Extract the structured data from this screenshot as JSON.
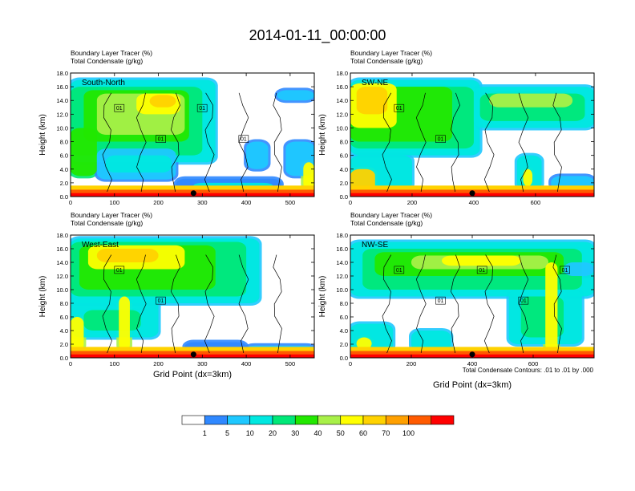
{
  "title": "2014-01-11_00:00:00",
  "shared": {
    "y_axis_label": "Height (km)",
    "x_axis_label": "Grid Point (dx=3km)",
    "contour_note": "Total Condensate Contours: .01 to .01 by .000"
  },
  "colors": {
    "frame": "#000000",
    "levels": [
      "#ffffff",
      "#2f88ff",
      "#1ec8ff",
      "#00e8e0",
      "#00e878",
      "#22e800",
      "#a8f048",
      "#ffff00",
      "#ffd200",
      "#ffa000",
      "#ff5a00",
      "#ff0000"
    ]
  },
  "colorbar": {
    "labels": [
      "1",
      "5",
      "10",
      "20",
      "30",
      "40",
      "50",
      "60",
      "70",
      "100"
    ]
  },
  "chart_data": [
    {
      "type": "heatmap",
      "panel_label": "South-North",
      "header_line1": "Boundary Layer Tracer   (%)",
      "header_line2": "Total Condensate   (g/kg)",
      "xlim": [
        0,
        555
      ],
      "ylim": [
        0,
        18
      ],
      "x_ticks": [
        "0",
        "100",
        "200",
        "300",
        "400",
        "500"
      ],
      "x_tick_values": [
        0,
        100,
        200,
        300,
        400,
        500
      ],
      "y_ticks": [
        "0.0",
        "2.0",
        "4.0",
        "6.0",
        "8.0",
        "10.0",
        "12.0",
        "14.0",
        "16.0",
        "18.0"
      ],
      "contour_labels": [
        "01",
        "01",
        "01",
        "01"
      ],
      "marker_x": 280,
      "blobs": [
        {
          "x0": 0,
          "x1": 330,
          "y0": 5,
          "y1": 17,
          "level": 3
        },
        {
          "x0": 0,
          "x1": 300,
          "y0": 6,
          "y1": 16,
          "level": 4
        },
        {
          "x0": 30,
          "x1": 270,
          "y0": 8,
          "y1": 15.5,
          "level": 5
        },
        {
          "x0": 60,
          "x1": 260,
          "y0": 9,
          "y1": 15,
          "level": 6
        },
        {
          "x0": 150,
          "x1": 250,
          "y0": 12,
          "y1": 15,
          "level": 7
        },
        {
          "x0": 180,
          "x1": 240,
          "y0": 13,
          "y1": 14.8,
          "level": 8
        },
        {
          "x0": 0,
          "x1": 60,
          "y0": 3,
          "y1": 10,
          "level": 5
        },
        {
          "x0": 60,
          "x1": 240,
          "y0": 2.5,
          "y1": 7,
          "level": 2
        },
        {
          "x0": 80,
          "x1": 230,
          "y0": 3.5,
          "y1": 6,
          "level": 3
        },
        {
          "x0": 240,
          "x1": 480,
          "y0": 1,
          "y1": 2.6,
          "level": 1
        },
        {
          "x0": 280,
          "x1": 460,
          "y0": 1.2,
          "y1": 2,
          "level": 3
        },
        {
          "x0": 490,
          "x1": 555,
          "y0": 3,
          "y1": 8,
          "level": 2
        },
        {
          "x0": 530,
          "x1": 555,
          "y0": 1,
          "y1": 5,
          "level": 7
        },
        {
          "x0": 400,
          "x1": 450,
          "y0": 4,
          "y1": 8,
          "level": 2
        },
        {
          "x0": 470,
          "x1": 555,
          "y0": 14,
          "y1": 15.5,
          "level": 2
        }
      ]
    },
    {
      "type": "heatmap",
      "panel_label": "SW-NE",
      "header_line1": "Boundary Layer Tracer   (%)",
      "header_line2": "Total Condensate   (g/kg)",
      "xlim": [
        0,
        790
      ],
      "ylim": [
        0,
        18
      ],
      "x_ticks": [
        "0",
        "200",
        "400",
        "600"
      ],
      "x_tick_values": [
        0,
        200,
        400,
        600
      ],
      "y_ticks": [
        "0.0",
        "2.0",
        "4.0",
        "6.0",
        "8.0",
        "10.0",
        "12.0",
        "14.0",
        "16.0",
        "18.0"
      ],
      "contour_labels": [
        "01",
        "01"
      ],
      "marker_x": 395,
      "blobs": [
        {
          "x0": 0,
          "x1": 420,
          "y0": 6,
          "y1": 17,
          "level": 3
        },
        {
          "x0": 0,
          "x1": 400,
          "y0": 7,
          "y1": 16,
          "level": 4
        },
        {
          "x0": 0,
          "x1": 330,
          "y0": 8,
          "y1": 16,
          "level": 5
        },
        {
          "x0": 0,
          "x1": 150,
          "y0": 10,
          "y1": 16.5,
          "level": 7
        },
        {
          "x0": 20,
          "x1": 120,
          "y0": 12,
          "y1": 16,
          "level": 8
        },
        {
          "x0": 400,
          "x1": 790,
          "y0": 10,
          "y1": 16,
          "level": 3
        },
        {
          "x0": 420,
          "x1": 760,
          "y0": 11,
          "y1": 15,
          "level": 4
        },
        {
          "x0": 450,
          "x1": 720,
          "y0": 13,
          "y1": 15,
          "level": 6
        },
        {
          "x0": 0,
          "x1": 200,
          "y0": 1,
          "y1": 6,
          "level": 3
        },
        {
          "x0": 0,
          "x1": 80,
          "y0": 0.5,
          "y1": 4,
          "level": 8
        },
        {
          "x0": 540,
          "x1": 620,
          "y0": 1,
          "y1": 6,
          "level": 3
        },
        {
          "x0": 560,
          "x1": 590,
          "y0": 1.5,
          "y1": 4,
          "level": 7
        },
        {
          "x0": 650,
          "x1": 790,
          "y0": 1,
          "y1": 3,
          "level": 2
        }
      ]
    },
    {
      "type": "heatmap",
      "panel_label": "West-East",
      "header_line1": "Boundary Layer Tracer   (%)",
      "header_line2": "Total Condensate   (g/kg)",
      "xlim": [
        0,
        555
      ],
      "ylim": [
        0,
        18
      ],
      "x_ticks": [
        "0",
        "100",
        "200",
        "300",
        "400",
        "500"
      ],
      "x_tick_values": [
        0,
        100,
        200,
        300,
        400,
        500
      ],
      "y_ticks": [
        "0.0",
        "2.0",
        "4.0",
        "6.0",
        "8.0",
        "10.0",
        "12.0",
        "14.0",
        "16.0",
        "18.0"
      ],
      "contour_labels": [
        "01",
        "01"
      ],
      "marker_x": 280,
      "blobs": [
        {
          "x0": 0,
          "x1": 430,
          "y0": 8,
          "y1": 17.5,
          "level": 3
        },
        {
          "x0": 0,
          "x1": 400,
          "y0": 9,
          "y1": 17,
          "level": 4
        },
        {
          "x0": 20,
          "x1": 330,
          "y0": 10,
          "y1": 16.5,
          "level": 5
        },
        {
          "x0": 40,
          "x1": 260,
          "y0": 13,
          "y1": 16.5,
          "level": 7
        },
        {
          "x0": 60,
          "x1": 200,
          "y0": 14,
          "y1": 16,
          "level": 8
        },
        {
          "x0": 0,
          "x1": 200,
          "y0": 3,
          "y1": 9,
          "level": 3
        },
        {
          "x0": 30,
          "x1": 160,
          "y0": 4,
          "y1": 7,
          "level": 4
        },
        {
          "x0": 0,
          "x1": 30,
          "y0": 1,
          "y1": 6,
          "level": 7
        },
        {
          "x0": 110,
          "x1": 135,
          "y0": 1,
          "y1": 9,
          "level": 7
        },
        {
          "x0": 260,
          "x1": 400,
          "y0": 1,
          "y1": 2.3,
          "level": 1
        },
        {
          "x0": 400,
          "x1": 555,
          "y0": 1,
          "y1": 1.8,
          "level": 2
        }
      ]
    },
    {
      "type": "heatmap",
      "panel_label": "NW-SE",
      "header_line1": "Boundary Layer Tracer   (%)",
      "header_line2": "Total Condensate   (g/kg)",
      "xlim": [
        0,
        800
      ],
      "ylim": [
        0,
        18
      ],
      "x_ticks": [
        "0",
        "200",
        "400",
        "600"
      ],
      "x_tick_values": [
        0,
        200,
        400,
        600
      ],
      "y_ticks": [
        "0.0",
        "2.0",
        "4.0",
        "6.0",
        "8.0",
        "10.0",
        "12.0",
        "14.0",
        "16.0",
        "18.0"
      ],
      "contour_labels": [
        "01",
        "01",
        "01",
        "01",
        "01"
      ],
      "marker_x": 400,
      "blobs": [
        {
          "x0": 0,
          "x1": 800,
          "y0": 9,
          "y1": 17,
          "level": 3
        },
        {
          "x0": 40,
          "x1": 760,
          "y0": 10,
          "y1": 16,
          "level": 4
        },
        {
          "x0": 80,
          "x1": 700,
          "y0": 12,
          "y1": 15.5,
          "level": 5
        },
        {
          "x0": 200,
          "x1": 650,
          "y0": 13,
          "y1": 15,
          "level": 6
        },
        {
          "x0": 300,
          "x1": 560,
          "y0": 13.5,
          "y1": 15,
          "level": 7
        },
        {
          "x0": 520,
          "x1": 760,
          "y0": 2,
          "y1": 10,
          "level": 3
        },
        {
          "x0": 560,
          "x1": 700,
          "y0": 3,
          "y1": 9,
          "level": 4
        },
        {
          "x0": 640,
          "x1": 680,
          "y0": 1,
          "y1": 14,
          "level": 7
        },
        {
          "x0": 0,
          "x1": 140,
          "y0": 1,
          "y1": 5,
          "level": 3
        },
        {
          "x0": 20,
          "x1": 70,
          "y0": 1.2,
          "y1": 3,
          "level": 7
        },
        {
          "x0": 200,
          "x1": 330,
          "y0": 1,
          "y1": 4,
          "level": 3
        },
        {
          "x0": 700,
          "x1": 800,
          "y0": 12,
          "y1": 14,
          "level": 2
        }
      ]
    }
  ]
}
